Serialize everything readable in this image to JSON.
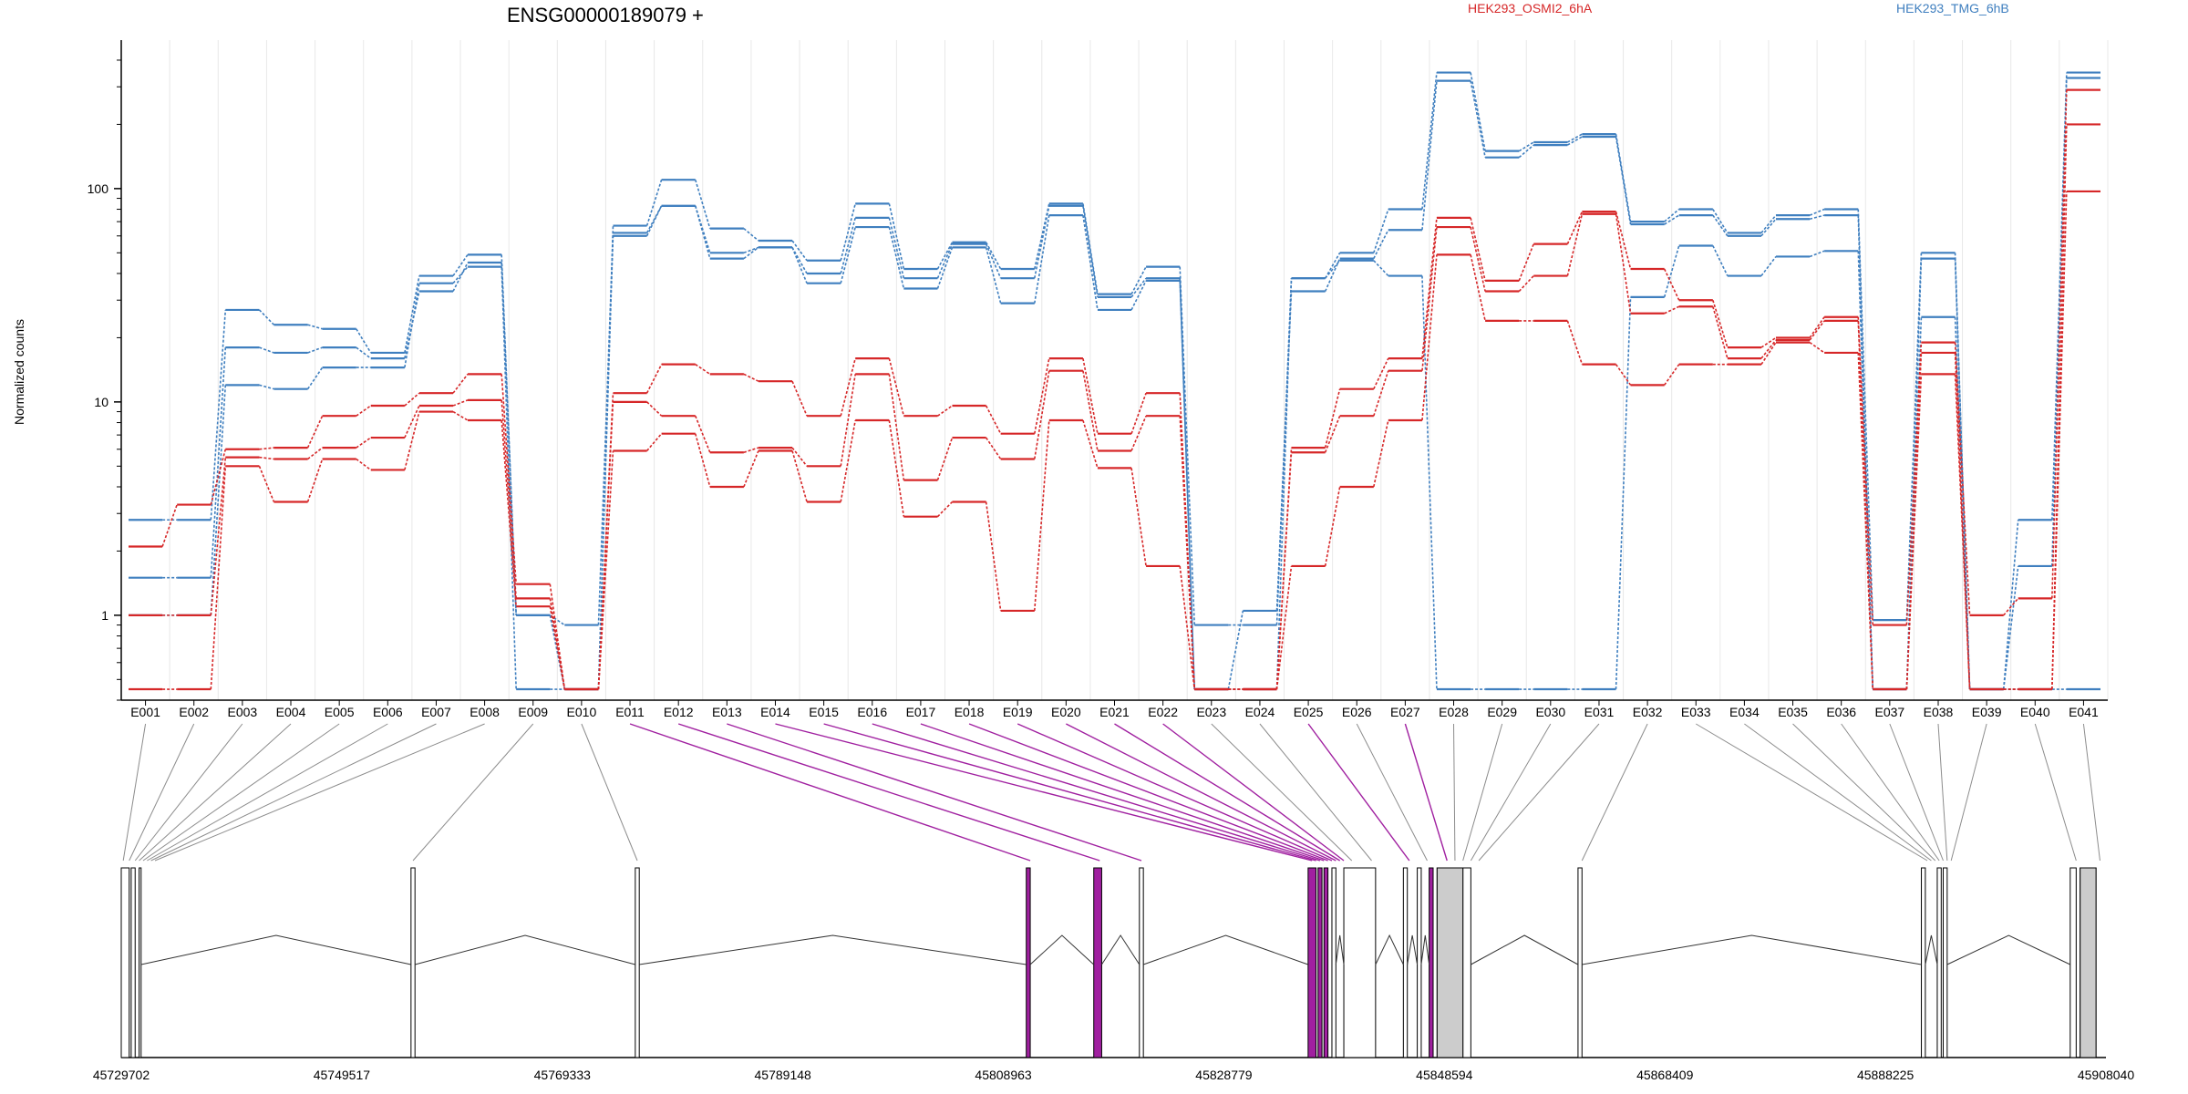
{
  "chart_data": {
    "type": "line",
    "title": "ENSG00000189079 +",
    "ylabel": "Normalized counts",
    "yscale": "log",
    "ylim": [
      0.4,
      450
    ],
    "yticks": [
      1,
      10,
      100
    ],
    "ytick_labels": [
      "1",
      "10",
      "100"
    ],
    "legend": [
      {
        "label": "HEK293_OSMI2_6hA",
        "color": "#d62728"
      },
      {
        "label": "HEK293_TMG_6hB",
        "color": "#3f7fbf"
      }
    ],
    "categories": [
      "E001",
      "E002",
      "E003",
      "E004",
      "E005",
      "E006",
      "E007",
      "E008",
      "E009",
      "E010",
      "E011",
      "E012",
      "E013",
      "E014",
      "E015",
      "E016",
      "E017",
      "E018",
      "E019",
      "E020",
      "E021",
      "E022",
      "E023",
      "E024",
      "E025",
      "E026",
      "E027",
      "E028",
      "E029",
      "E030",
      "E031",
      "E032",
      "E033",
      "E034",
      "E035",
      "E036",
      "E037",
      "E038",
      "E039",
      "E040",
      "E041"
    ],
    "highlighted_exons": [
      "E011",
      "E012",
      "E013",
      "E014",
      "E015",
      "E016",
      "E017",
      "E018",
      "E019",
      "E020",
      "E021",
      "E022",
      "E025",
      "E027"
    ],
    "series": [
      {
        "group": "HEK293_TMG_6hB",
        "color": "#3f7fbf",
        "values": [
          2.8,
          2.8,
          27,
          23,
          22,
          17,
          39,
          49,
          1,
          0.45,
          67,
          110,
          65,
          57,
          46,
          85,
          42,
          56,
          42,
          85,
          32,
          43,
          0.9,
          0.9,
          38,
          50,
          80,
          350,
          150,
          165,
          180,
          70,
          80,
          62,
          75,
          80,
          0.95,
          50,
          0.45,
          2.8,
          350
        ]
      },
      {
        "group": "HEK293_TMG_6hB",
        "color": "#3f7fbf",
        "values": [
          1.5,
          1.5,
          18,
          17,
          18,
          16,
          33,
          45,
          1,
          0.9,
          62,
          83,
          50,
          53,
          40,
          73,
          38,
          55,
          38,
          83,
          31,
          38,
          0.45,
          1.05,
          33,
          47,
          64,
          320,
          140,
          160,
          175,
          68,
          75,
          60,
          72,
          75,
          0.45,
          47,
          0.45,
          1.7,
          330
        ]
      },
      {
        "group": "HEK293_TMG_6hB",
        "color": "#3f7fbf",
        "values": [
          1,
          1,
          12,
          11.5,
          14.5,
          14.5,
          36,
          43,
          0.45,
          0.45,
          60,
          83,
          47,
          53,
          36,
          66,
          34,
          53,
          29,
          75,
          27,
          37,
          0.45,
          0.45,
          38,
          46,
          39,
          0.45,
          0.45,
          0.45,
          0.45,
          31,
          54,
          39,
          48,
          51,
          0.45,
          25,
          0.45,
          0.45,
          0.45
        ]
      },
      {
        "group": "HEK293_OSMI2_6hA",
        "color": "#d62728",
        "values": [
          2.1,
          3.3,
          6,
          6.1,
          8.6,
          9.6,
          11,
          13.5,
          1.4,
          0.45,
          11,
          15,
          13.5,
          12.5,
          8.6,
          16,
          8.6,
          9.6,
          7.1,
          16,
          7.1,
          11,
          0.45,
          0.45,
          6.1,
          11.5,
          16,
          73,
          37,
          55,
          78,
          42,
          30,
          18,
          20,
          25,
          0.9,
          19,
          1,
          1.2,
          290
        ]
      },
      {
        "group": "HEK293_OSMI2_6hA",
        "color": "#d62728",
        "values": [
          1,
          1,
          5.5,
          5.4,
          6.1,
          6.8,
          9.6,
          10.2,
          1.2,
          0.45,
          10,
          8.6,
          5.8,
          6.1,
          5,
          13.5,
          4.3,
          6.8,
          5.4,
          14,
          5.9,
          8.6,
          0.45,
          0.45,
          5.8,
          8.6,
          14,
          66,
          33,
          39,
          76,
          26,
          28,
          16,
          19.5,
          24,
          0.45,
          17,
          0.45,
          0.45,
          200
        ]
      },
      {
        "group": "HEK293_OSMI2_6hA",
        "color": "#d62728",
        "values": [
          0.45,
          0.45,
          5,
          3.4,
          5.4,
          4.8,
          9,
          8.2,
          1.1,
          0.45,
          5.9,
          7.1,
          4,
          5.9,
          3.4,
          8.2,
          2.9,
          3.4,
          1.05,
          8.2,
          4.9,
          1.7,
          0.45,
          0.45,
          1.7,
          4,
          8.2,
          49,
          24,
          24,
          15,
          12,
          15,
          15,
          19,
          17,
          0.45,
          13.5,
          0.45,
          0.45,
          97
        ]
      }
    ]
  },
  "gene_model": {
    "coordinate_labels": [
      "45729702",
      "45749517",
      "45769333",
      "45789148",
      "45808963",
      "45828779",
      "45848594",
      "45868409",
      "45888225",
      "45908040"
    ]
  },
  "colors": {
    "red": "#d62728",
    "blue": "#3f7fbf",
    "highlight": "#a020a0",
    "connector": "#8c8c8c",
    "exon_fill": "#cccccc"
  }
}
